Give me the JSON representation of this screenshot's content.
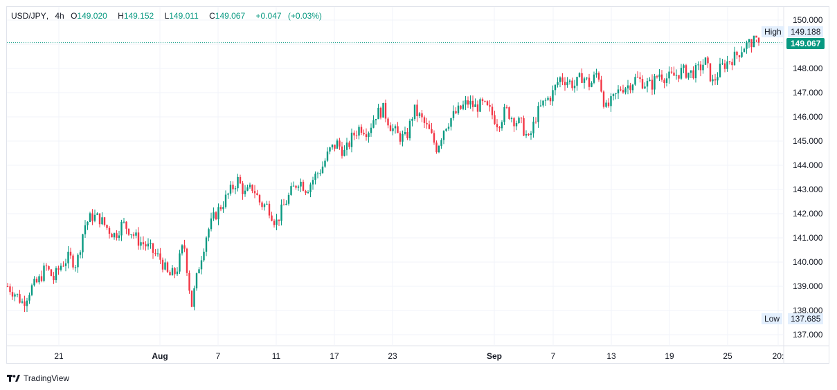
{
  "legend": {
    "symbol": "USD/JPY",
    "interval": "4h",
    "open_label": "O",
    "open": "149.020",
    "high_label": "H",
    "high": "149.152",
    "low_label": "L",
    "low": "149.011",
    "close_label": "C",
    "close": "149.067",
    "change": "+0.047",
    "change_pct": "(+0.03%)"
  },
  "markers": {
    "high_label": "High",
    "high_value": "149.188",
    "low_label": "Low",
    "low_value": "137.685",
    "last_price": "149.067"
  },
  "branding": {
    "name": "TradingView"
  },
  "colors": {
    "up": "#089981",
    "down": "#f23645",
    "grid": "#f0f3fa",
    "axis_text": "#131722"
  },
  "chart_data": {
    "type": "candlestick",
    "title": "USD/JPY, 4h",
    "ylim": [
      136.5,
      150.6
    ],
    "y_ticks": [
      "137.000",
      "138.000",
      "139.000",
      "140.000",
      "141.000",
      "142.000",
      "143.000",
      "144.000",
      "145.000",
      "146.000",
      "147.000",
      "148.000",
      "149.000",
      "150.000"
    ],
    "x_ticks": [
      {
        "label": "21",
        "bold": false
      },
      {
        "label": "Aug",
        "bold": true
      },
      {
        "label": "7",
        "bold": false
      },
      {
        "label": "11",
        "bold": false
      },
      {
        "label": "17",
        "bold": false
      },
      {
        "label": "23",
        "bold": false
      },
      {
        "label": "Sep",
        "bold": true
      },
      {
        "label": "7",
        "bold": false
      },
      {
        "label": "13",
        "bold": false
      },
      {
        "label": "19",
        "bold": false
      },
      {
        "label": "25",
        "bold": false
      },
      {
        "label": "20:",
        "bold": false
      }
    ],
    "close_path": [
      139.0,
      138.7,
      138.3,
      138.9,
      139.2,
      139.8,
      139.3,
      139.9,
      140.2,
      139.9,
      141.5,
      141.9,
      141.8,
      141.4,
      141.1,
      141.6,
      141.3,
      140.9,
      140.7,
      140.4,
      140.1,
      139.4,
      139.6,
      140.8,
      138.2,
      139.9,
      141.2,
      141.9,
      142.4,
      142.9,
      143.4,
      142.8,
      143.1,
      142.4,
      142.3,
      141.6,
      142.3,
      142.9,
      143.4,
      143.0,
      143.5,
      143.9,
      144.6,
      144.9,
      144.5,
      145.2,
      145.6,
      145.4,
      146.1,
      146.3,
      145.6,
      145.2,
      145.1,
      146.3,
      145.9,
      145.4,
      144.7,
      145.6,
      146.0,
      146.3,
      146.6,
      146.4,
      146.5,
      146.2,
      145.7,
      146.3,
      145.9,
      145.7,
      145.0,
      146.1,
      146.6,
      146.9,
      147.6,
      147.5,
      147.3,
      147.7,
      147.3,
      147.9,
      146.3,
      146.7,
      147.2,
      147.3,
      147.6,
      147.4,
      147.3,
      147.8,
      147.6,
      147.7,
      147.9,
      147.8,
      147.9,
      148.3,
      147.4,
      148.0,
      148.3,
      148.5,
      148.9,
      149.1,
      149.07
    ],
    "x_range": [
      "Jul 18",
      "Sep 28"
    ],
    "high": 149.188,
    "low": 137.685,
    "last": 149.067
  }
}
